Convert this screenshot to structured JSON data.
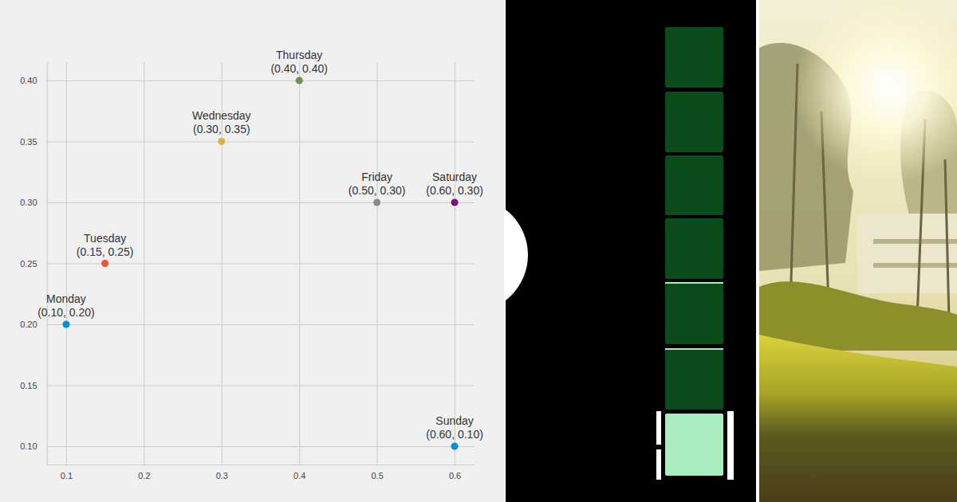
{
  "chart_data": {
    "type": "scatter",
    "categories": [
      "Monday",
      "Tuesday",
      "Wednesday",
      "Thursday",
      "Friday",
      "Saturday",
      "Sunday"
    ],
    "x": [
      0.1,
      0.15,
      0.3,
      0.4,
      0.5,
      0.6,
      0.6
    ],
    "values": [
      0.2,
      0.25,
      0.35,
      0.4,
      0.3,
      0.3,
      0.1
    ],
    "value_labels": [
      "(0.10, 0.20)",
      "(0.15, 0.25)",
      "(0.30, 0.35)",
      "(0.40, 0.40)",
      "(0.50, 0.30)",
      "(0.60, 0.30)",
      "(0.60, 0.10)"
    ],
    "colors": [
      "#008fd5",
      "#fc4f30",
      "#e5ae38",
      "#6d904f",
      "#8b8b8b",
      "#810f7c",
      "#008fd5"
    ],
    "data_labels": true,
    "grid": true,
    "xlim": [
      0.075,
      0.625
    ],
    "ylim": [
      0.085,
      0.415
    ],
    "xticks": [
      0.1,
      0.2,
      0.3,
      0.4,
      0.5,
      0.6
    ],
    "yticks": [
      {
        "value": 0.1,
        "label": "0.10"
      },
      {
        "value": 0.15,
        "label": "0.15"
      },
      {
        "value": 0.2,
        "label": "0.20"
      },
      {
        "value": 0.25,
        "label": "0.25"
      },
      {
        "value": 0.3,
        "label": "0.30"
      },
      {
        "value": 0.35,
        "label": "0.35"
      },
      {
        "value": 0.4,
        "label": "0.40"
      }
    ]
  }
}
